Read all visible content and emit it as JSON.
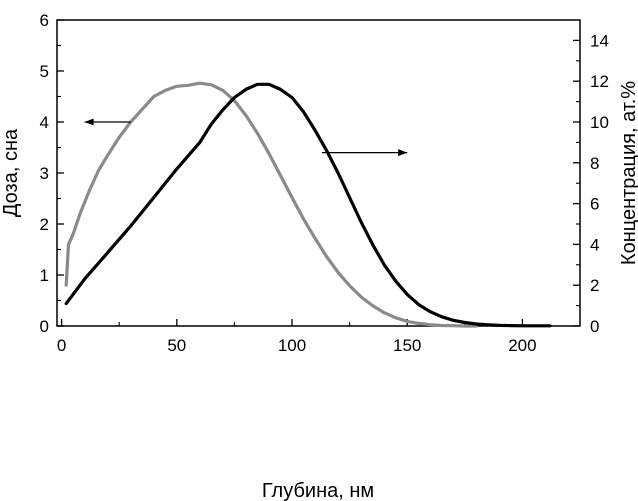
{
  "chart_data": {
    "type": "line",
    "xlabel": "Глубина, нм",
    "ylabel": "Доза, сна",
    "y2label": "Концентрация, ат.%",
    "xlim": [
      -2,
      225
    ],
    "ylim": [
      0,
      6
    ],
    "y2lim": [
      0,
      15
    ],
    "xticks": [
      0,
      50,
      100,
      150,
      200
    ],
    "yticks": [
      0,
      1,
      2,
      3,
      4,
      5,
      6
    ],
    "y2ticks": [
      0,
      2,
      4,
      6,
      8,
      10,
      12,
      14
    ],
    "grid": false,
    "series": [
      {
        "axis": "left",
        "color": "#8a8a8a",
        "x": [
          2,
          3,
          5,
          8,
          12,
          16,
          20,
          25,
          30,
          35,
          40,
          45,
          50,
          55,
          60,
          65,
          70,
          75,
          80,
          85,
          90,
          95,
          100,
          105,
          110,
          115,
          120,
          125,
          130,
          135,
          140,
          145,
          150,
          155,
          160,
          165,
          170,
          175,
          180
        ],
        "y": [
          0.8,
          1.6,
          1.8,
          2.2,
          2.65,
          3.05,
          3.35,
          3.7,
          4.0,
          4.25,
          4.5,
          4.62,
          4.7,
          4.72,
          4.76,
          4.73,
          4.62,
          4.42,
          4.13,
          3.78,
          3.38,
          2.95,
          2.52,
          2.1,
          1.72,
          1.36,
          1.05,
          0.79,
          0.57,
          0.4,
          0.26,
          0.16,
          0.09,
          0.05,
          0.025,
          0.01,
          0.005,
          0.0,
          0.0
        ]
      },
      {
        "axis": "right",
        "color": "#000000",
        "x": [
          2,
          10,
          20,
          30,
          40,
          50,
          60,
          65,
          70,
          75,
          80,
          85,
          90,
          95,
          100,
          105,
          110,
          115,
          120,
          125,
          130,
          135,
          140,
          145,
          150,
          155,
          160,
          165,
          170,
          175,
          180,
          185,
          190,
          195,
          200,
          205,
          212
        ],
        "y": [
          1.1,
          2.3,
          3.6,
          4.9,
          6.3,
          7.7,
          9.0,
          9.9,
          10.6,
          11.2,
          11.6,
          11.85,
          11.85,
          11.6,
          11.2,
          10.5,
          9.6,
          8.6,
          7.5,
          6.3,
          5.1,
          4.0,
          3.0,
          2.2,
          1.55,
          1.05,
          0.7,
          0.45,
          0.28,
          0.17,
          0.1,
          0.06,
          0.03,
          0.02,
          0.01,
          0.01,
          0.01
        ]
      }
    ],
    "annotations": [
      {
        "type": "arrow",
        "from": [
          30,
          4.0
        ],
        "to": [
          10,
          4.0
        ],
        "axis": "left",
        "meaning": "points to left axis"
      },
      {
        "type": "arrow",
        "from": [
          113,
          3.4
        ],
        "to": [
          150,
          3.4
        ],
        "axis": "left",
        "meaning": "points to right axis"
      }
    ]
  }
}
